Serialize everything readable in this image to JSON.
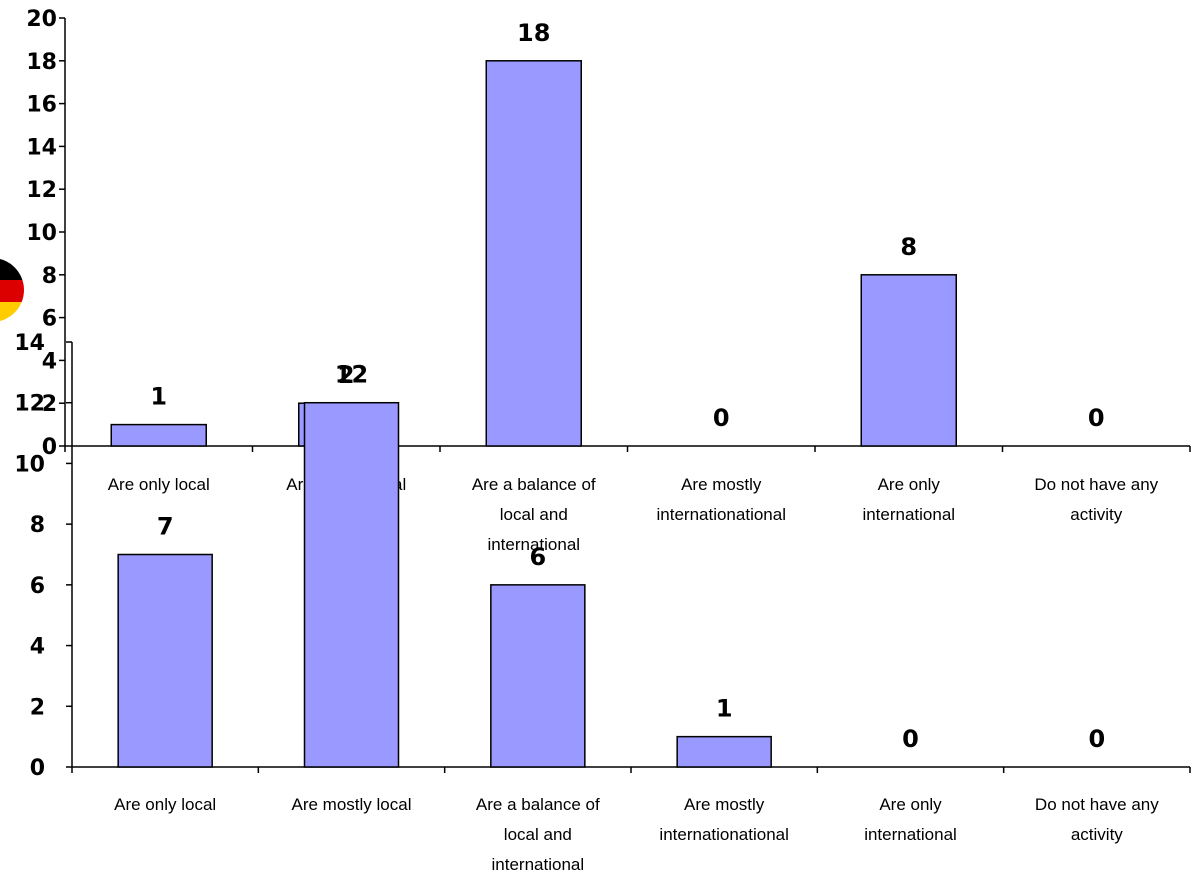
{
  "colors": {
    "bar": "#9999ff",
    "logo": [
      "#000000",
      "#dd0000",
      "#ffcc00"
    ]
  },
  "chart_data": [
    {
      "type": "bar",
      "categories": [
        "Are only local",
        "Are mostly local",
        "Are a balance of local and international",
        "Are mostly internationational",
        "Are only international",
        "Do not have any activity"
      ],
      "values": [
        1,
        2,
        18,
        0,
        8,
        0
      ],
      "ylim": [
        0,
        20
      ],
      "yticks": [
        0,
        2,
        4,
        6,
        8,
        10,
        12,
        14,
        16,
        18,
        20
      ],
      "title": "",
      "xlabel": "",
      "ylabel": "",
      "grid": false
    },
    {
      "type": "bar",
      "categories": [
        "Are only local",
        "Are mostly local",
        "Are a balance of local and international",
        "Are mostly internationational",
        "Are only international",
        "Do not have any activity"
      ],
      "values": [
        7,
        12,
        6,
        1,
        0,
        0
      ],
      "ylim": [
        0,
        14
      ],
      "yticks": [
        0,
        2,
        4,
        6,
        8,
        10,
        12,
        14
      ],
      "title": "",
      "xlabel": "",
      "ylabel": "",
      "grid": false
    }
  ]
}
